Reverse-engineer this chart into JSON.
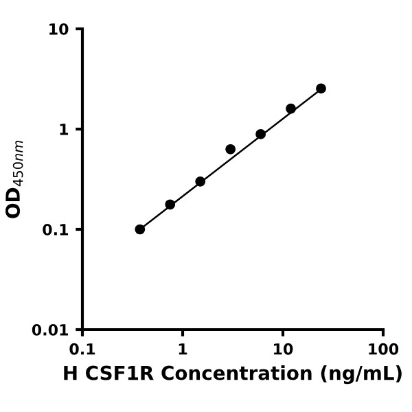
{
  "chart_data": {
    "type": "scatter",
    "xlabel": "H CSF1R Concentration (ng/mL)",
    "ylabel": "OD$_{450nm}$",
    "log": "xy",
    "xlim": [
      0.1,
      100
    ],
    "ylim": [
      0.01,
      10
    ],
    "xticks": [
      0.1,
      1,
      10,
      100
    ],
    "yticks": [
      0.01,
      0.1,
      1,
      10
    ],
    "grid": false,
    "marker": "circle",
    "series": [
      {
        "color": "#000000",
        "x": [
          0.375,
          0.75,
          1.5,
          3,
          6,
          12,
          24
        ],
        "values": [
          0.1,
          0.177,
          0.3,
          0.63,
          0.89,
          1.6,
          2.54
        ]
      },
      {
        "type": "line",
        "color": "#000000",
        "x": [
          0.375,
          24
        ],
        "values": [
          0.1,
          2.5
        ],
        "marker": "none",
        "line_style": "solid"
      }
    ]
  }
}
